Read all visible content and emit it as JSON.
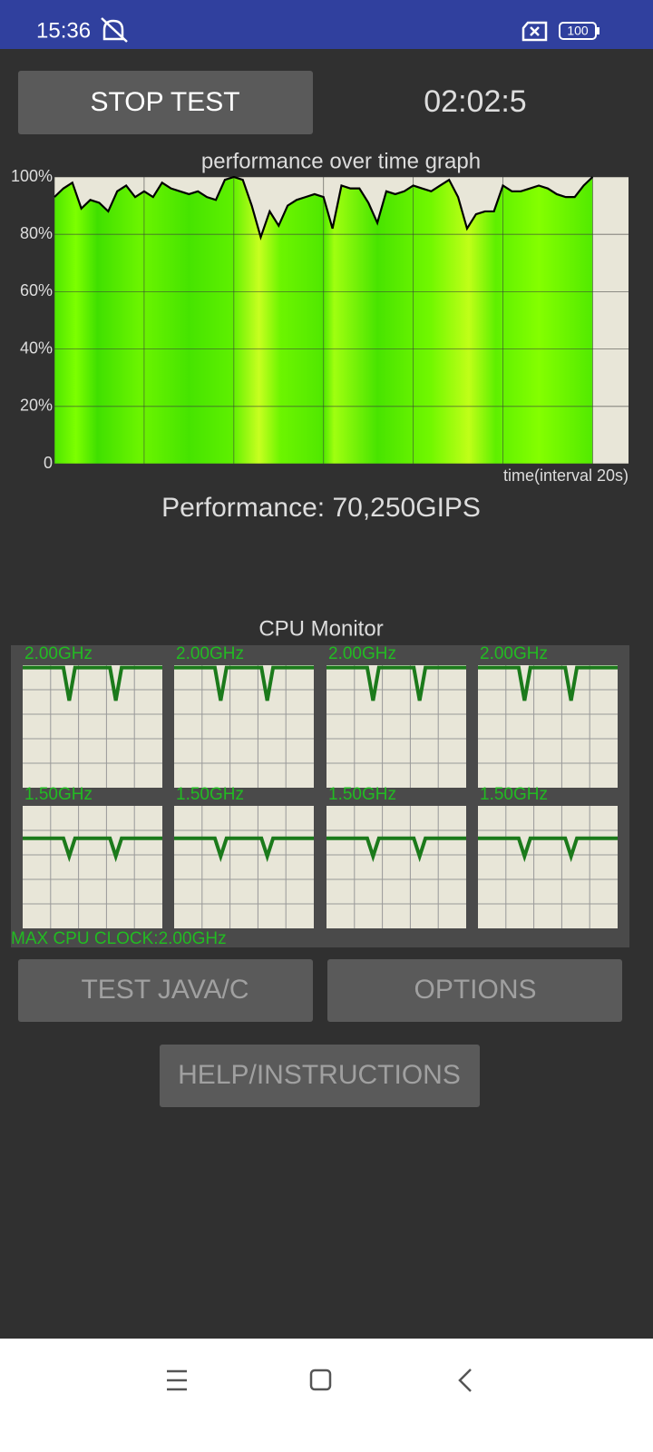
{
  "status_bar": {
    "time": "15:36",
    "battery": "100"
  },
  "buttons": {
    "stop": "STOP TEST",
    "java": "TEST JAVA/C",
    "options": "OPTIONS",
    "help": "HELP/INSTRUCTIONS"
  },
  "timer": "02:02:5",
  "chart_data": {
    "type": "line",
    "title": "performance over time graph",
    "x_label": "time(interval 20s)",
    "x": [
      0,
      2,
      4,
      6,
      8,
      10,
      12,
      14,
      16,
      18,
      20,
      22,
      24,
      26,
      28,
      30,
      32,
      34,
      36,
      38,
      40,
      42,
      44,
      46,
      48,
      50,
      52,
      54,
      56,
      58,
      60,
      62,
      64,
      66,
      68,
      70,
      72,
      74,
      76,
      78,
      80,
      82,
      84,
      86,
      88,
      90,
      92,
      94,
      96,
      98,
      100,
      102,
      104,
      106,
      108,
      110,
      112,
      114,
      116,
      118,
      120
    ],
    "values": [
      93,
      96,
      98,
      89,
      92,
      91,
      88,
      95,
      97,
      93,
      95,
      93,
      98,
      96,
      95,
      94,
      95,
      93,
      92,
      99,
      100,
      99,
      90,
      79,
      88,
      83,
      90,
      92,
      93,
      94,
      93,
      82,
      97,
      96,
      96,
      91,
      84,
      95,
      94,
      95,
      97,
      96,
      95,
      97,
      99,
      93,
      82,
      87,
      88,
      88,
      97,
      95,
      95,
      96,
      97,
      96,
      94,
      93,
      93,
      97,
      100
    ],
    "color": "#000000",
    "xlim": [
      0,
      128
    ],
    "xticks": [
      0,
      20,
      40,
      60,
      80,
      100,
      120
    ],
    "ylim": [
      0,
      100
    ],
    "yticks": [
      0,
      {
        "value": 20,
        "label": "20%"
      },
      {
        "value": 40,
        "label": "40%"
      },
      {
        "value": 60,
        "label": "60%"
      },
      {
        "value": 80,
        "label": "80%"
      },
      {
        "value": 100,
        "label": "100%"
      }
    ],
    "grid": true
  },
  "performance_label": "Performance: 70,250GIPS",
  "cpu_monitor": {
    "title": "CPU Monitor",
    "ylim": [
      0,
      2.04
    ],
    "color": "#1b7a1b",
    "cores": [
      {
        "label": "2.00GHz",
        "values": [
          2,
          2,
          2,
          2,
          2,
          2,
          2,
          2,
          1.45,
          2,
          2,
          2,
          2,
          2,
          2,
          2,
          1.45,
          2,
          2,
          2,
          2,
          2,
          2,
          2,
          2
        ]
      },
      {
        "label": "2.00GHz",
        "values": [
          2,
          2,
          2,
          2,
          2,
          2,
          2,
          2,
          1.45,
          2,
          2,
          2,
          2,
          2,
          2,
          2,
          1.45,
          2,
          2,
          2,
          2,
          2,
          2,
          2,
          2
        ]
      },
      {
        "label": "2.00GHz",
        "values": [
          2,
          2,
          2,
          2,
          2,
          2,
          2,
          2,
          1.45,
          2,
          2,
          2,
          2,
          2,
          2,
          2,
          1.45,
          2,
          2,
          2,
          2,
          2,
          2,
          2,
          2
        ]
      },
      {
        "label": "2.00GHz",
        "values": [
          2,
          2,
          2,
          2,
          2,
          2,
          2,
          2,
          1.45,
          2,
          2,
          2,
          2,
          2,
          2,
          2,
          1.45,
          2,
          2,
          2,
          2,
          2,
          2,
          2,
          2
        ]
      },
      {
        "label": "1.50GHz",
        "values": [
          1.5,
          1.5,
          1.5,
          1.5,
          1.5,
          1.5,
          1.5,
          1.5,
          1.2,
          1.5,
          1.5,
          1.5,
          1.5,
          1.5,
          1.5,
          1.5,
          1.2,
          1.5,
          1.5,
          1.5,
          1.5,
          1.5,
          1.5,
          1.5,
          1.5
        ]
      },
      {
        "label": "1.50GHz",
        "values": [
          1.5,
          1.5,
          1.5,
          1.5,
          1.5,
          1.5,
          1.5,
          1.5,
          1.2,
          1.5,
          1.5,
          1.5,
          1.5,
          1.5,
          1.5,
          1.5,
          1.2,
          1.5,
          1.5,
          1.5,
          1.5,
          1.5,
          1.5,
          1.5,
          1.5
        ]
      },
      {
        "label": "1.50GHz",
        "values": [
          1.5,
          1.5,
          1.5,
          1.5,
          1.5,
          1.5,
          1.5,
          1.5,
          1.2,
          1.5,
          1.5,
          1.5,
          1.5,
          1.5,
          1.5,
          1.5,
          1.2,
          1.5,
          1.5,
          1.5,
          1.5,
          1.5,
          1.5,
          1.5,
          1.5
        ]
      },
      {
        "label": "1.50GHz",
        "values": [
          1.5,
          1.5,
          1.5,
          1.5,
          1.5,
          1.5,
          1.5,
          1.5,
          1.2,
          1.5,
          1.5,
          1.5,
          1.5,
          1.5,
          1.5,
          1.5,
          1.2,
          1.5,
          1.5,
          1.5,
          1.5,
          1.5,
          1.5,
          1.5,
          1.5
        ]
      }
    ],
    "max_clock": "MAX CPU CLOCK:2.00GHz"
  }
}
